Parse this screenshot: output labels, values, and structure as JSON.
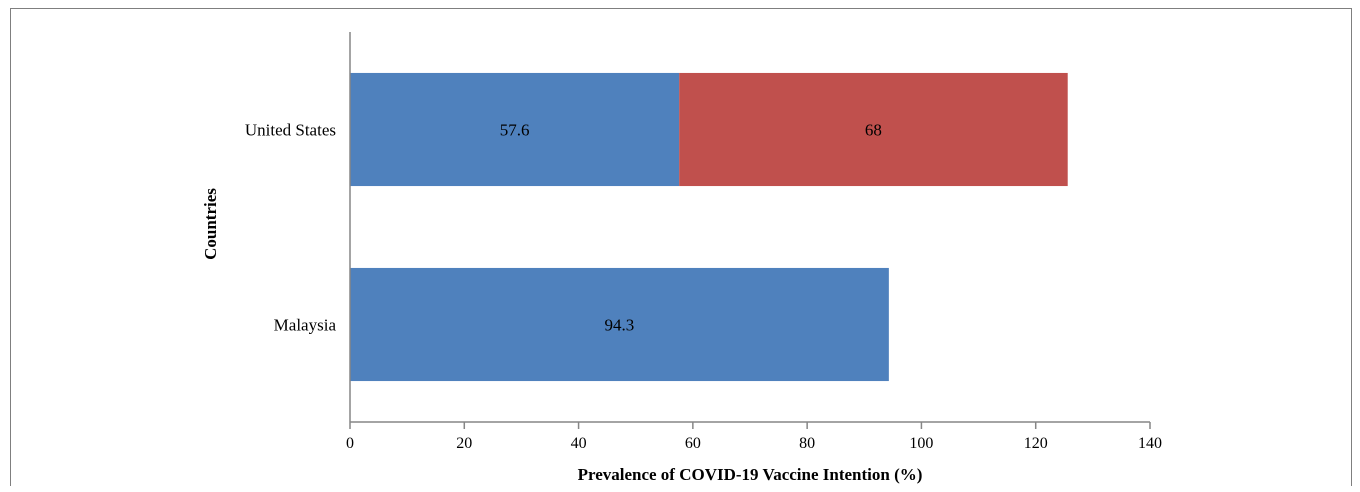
{
  "chart_data": {
    "type": "bar",
    "orientation": "horizontal",
    "stacked": true,
    "categories": [
      "United States",
      "Malaysia"
    ],
    "series": [
      {
        "values": [
          57.6,
          94.3
        ],
        "color": "#4f81bd"
      },
      {
        "values": [
          68,
          null
        ],
        "color": "#c0504d"
      }
    ],
    "xlabel": "Prevalence of COVID-19 Vaccine Intention (%)",
    "ylabel": "Countries",
    "xlim": [
      0,
      140
    ],
    "xticks": [
      0,
      20,
      40,
      60,
      80,
      100,
      120,
      140
    ],
    "grid": false,
    "legend": "none"
  }
}
